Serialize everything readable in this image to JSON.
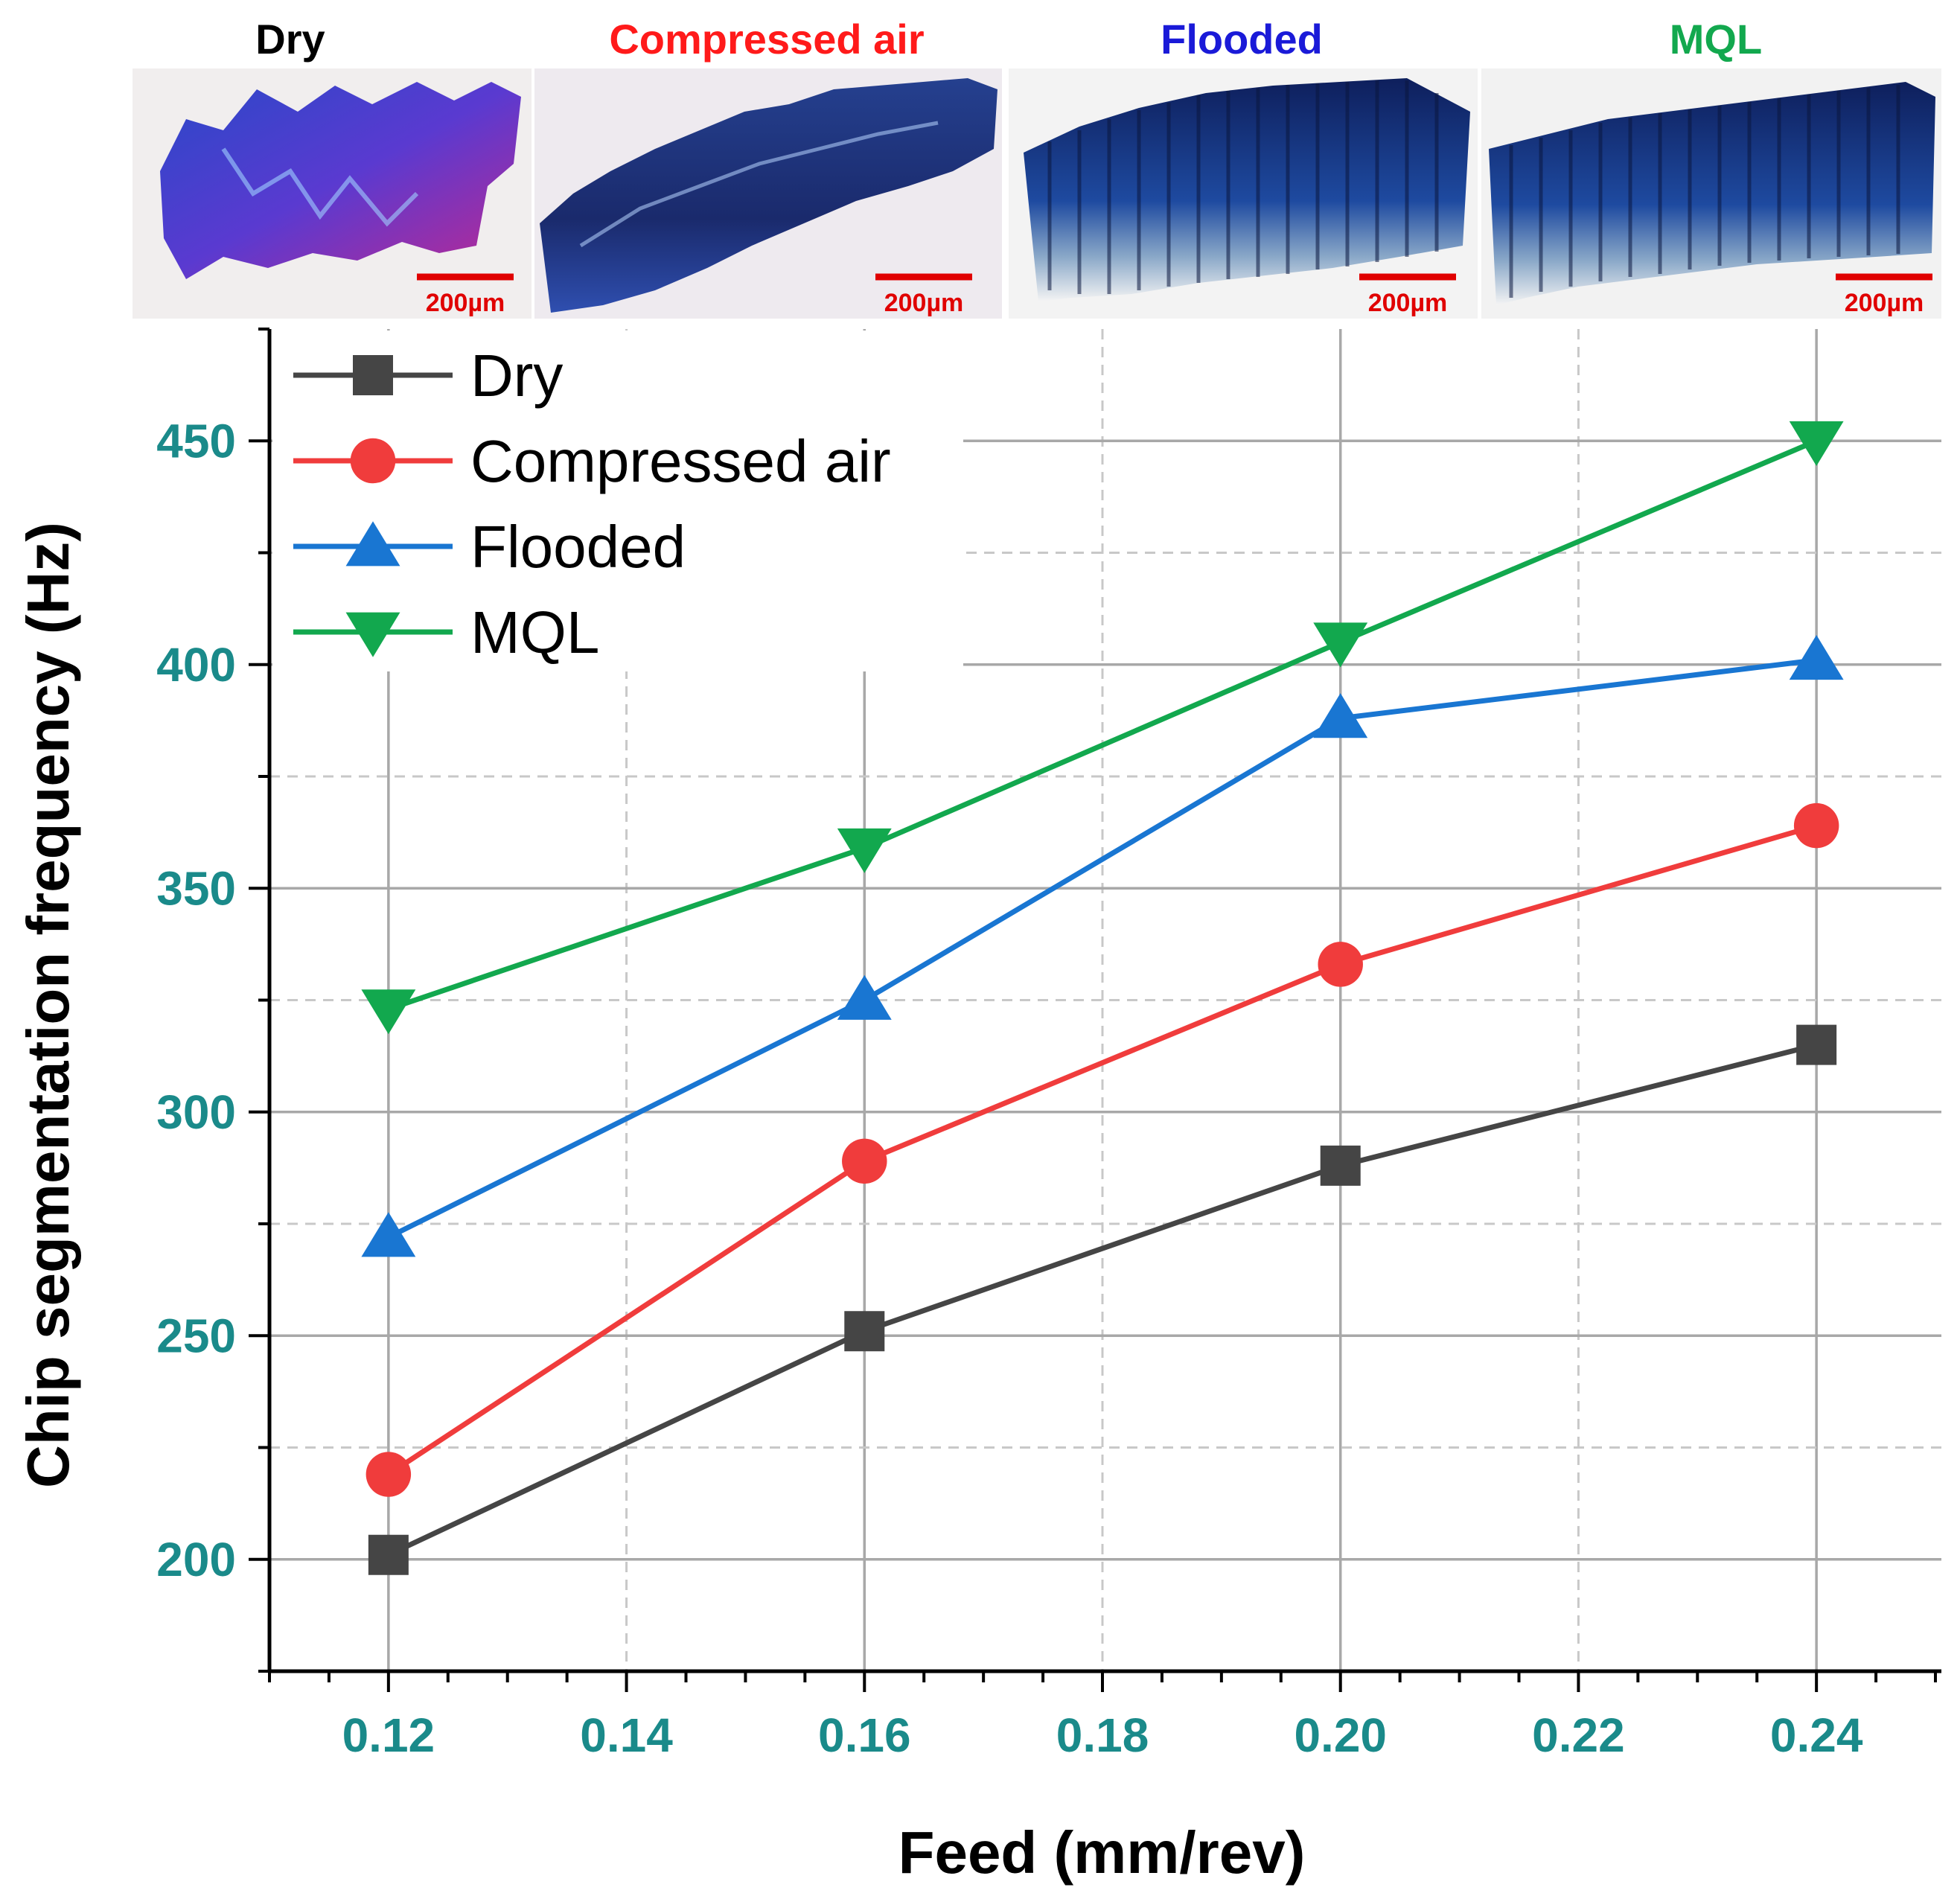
{
  "micrographs": [
    {
      "label": "Dry",
      "label_color": "#000000",
      "scale_bar": "200µm",
      "tint": "#2a48c8",
      "accent": "#c02890"
    },
    {
      "label": "Compressed air",
      "label_color": "#ff1a1a",
      "scale_bar": "200µm",
      "tint": "#1a2f8a",
      "accent": "#3a5ad0"
    },
    {
      "label": "Flooded",
      "label_color": "#1a1ad8",
      "scale_bar": "200µm",
      "tint": "#142c78",
      "accent": "#2a78c8"
    },
    {
      "label": "MQL",
      "label_color": "#12a84e",
      "scale_bar": "200µm",
      "tint": "#142c78",
      "accent": "#2a70c0"
    }
  ],
  "scale_bar_color": "#e00000",
  "chart_data": {
    "type": "line",
    "xlabel": "Feed (mm/rev)",
    "ylabel": "Chip segmentation frequency (Hz)",
    "x": [
      0.12,
      0.16,
      0.2,
      0.24
    ],
    "xlim": [
      0.11,
      0.2505
    ],
    "ylim": [
      175,
      475
    ],
    "xticks": [
      0.12,
      0.14,
      0.16,
      0.18,
      0.2,
      0.22,
      0.24
    ],
    "xtick_labels": [
      "0.12",
      "0.14",
      "0.16",
      "0.18",
      "0.20",
      "0.22",
      "0.24"
    ],
    "yticks": [
      200,
      250,
      300,
      350,
      400,
      450
    ],
    "ytick_labels": [
      "200",
      "250",
      "300",
      "350",
      "400",
      "450"
    ],
    "tick_label_color": "#1a8a8a",
    "grid": true,
    "legend_position": "top-left",
    "series": [
      {
        "name": "Dry",
        "color": "#454545",
        "marker": "square",
        "values": [
          201,
          251,
          288,
          315
        ]
      },
      {
        "name": "Compressed air",
        "color": "#f03c3c",
        "marker": "circle",
        "values": [
          219,
          289,
          333,
          364
        ]
      },
      {
        "name": "Flooded",
        "color": "#1976d2",
        "marker": "triangle-up",
        "values": [
          272,
          325,
          388,
          401
        ]
      },
      {
        "name": "MQL",
        "color": "#12a84e",
        "marker": "triangle-down",
        "values": [
          323,
          359,
          405,
          450
        ]
      }
    ]
  }
}
